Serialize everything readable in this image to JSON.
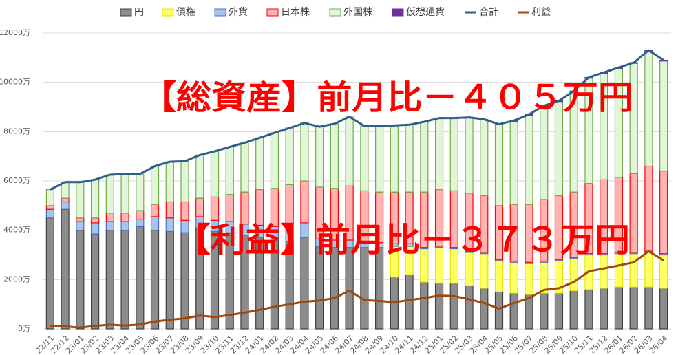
{
  "chart_data": {
    "type": "bar",
    "categories": [
      "22/11",
      "22/12",
      "23/01",
      "23/02",
      "23/03",
      "23/04",
      "23/05",
      "23/06",
      "23/07",
      "23/08",
      "23/09",
      "23/10",
      "23/11",
      "23/12",
      "24/01",
      "24/02",
      "24/03",
      "24/04",
      "24/05",
      "24/06",
      "24/07",
      "24/08",
      "24/09",
      "24/10",
      "24/11",
      "24/12",
      "25/01",
      "25/02",
      "25/03",
      "25/04",
      "25/05",
      "25/06",
      "25/07",
      "25/08",
      "25/09",
      "25/10",
      "25/11",
      "25/12",
      "26/01",
      "26/02",
      "26/03",
      "26/04"
    ],
    "series": [
      {
        "name": "円",
        "kind": "bar",
        "color": "#8c8c8c",
        "edge": "#3f3f3f",
        "values": [
          4500,
          4850,
          4000,
          3850,
          4000,
          4000,
          4150,
          4000,
          3950,
          3900,
          4100,
          3950,
          3900,
          3800,
          3700,
          3600,
          3550,
          3700,
          3350,
          3300,
          3300,
          3300,
          3300,
          2100,
          2200,
          1900,
          1850,
          1850,
          1750,
          1650,
          1500,
          1450,
          1400,
          1450,
          1450,
          1550,
          1600,
          1650,
          1700,
          1700,
          1700,
          1650
        ]
      },
      {
        "name": "債権",
        "kind": "bar",
        "color": "#ffff66",
        "edge": "#e6e600",
        "values": [
          0,
          0,
          0,
          0,
          0,
          0,
          0,
          0,
          0,
          0,
          0,
          0,
          0,
          0,
          0,
          0,
          0,
          0,
          0,
          0,
          0,
          0,
          0,
          1250,
          1150,
          1350,
          1450,
          1400,
          1350,
          1400,
          1250,
          1250,
          1250,
          1250,
          1300,
          1300,
          1400,
          1350,
          1350,
          1350,
          1400,
          1350
        ]
      },
      {
        "name": "外貨",
        "kind": "bar",
        "color": "#a9c4eb",
        "edge": "#4472c4",
        "values": [
          350,
          300,
          350,
          450,
          350,
          350,
          300,
          550,
          550,
          500,
          450,
          450,
          450,
          450,
          500,
          550,
          700,
          600,
          300,
          300,
          300,
          250,
          200,
          100,
          100,
          50,
          50,
          50,
          50,
          50,
          50,
          50,
          50,
          50,
          50,
          50,
          50,
          50,
          50,
          50,
          50,
          50
        ]
      },
      {
        "name": "日本株",
        "kind": "bar",
        "color": "#ffb3b3",
        "edge": "#ff0000",
        "values": [
          150,
          150,
          150,
          200,
          350,
          350,
          350,
          500,
          650,
          750,
          750,
          950,
          1100,
          1300,
          1450,
          1550,
          1600,
          1700,
          2100,
          2100,
          2200,
          2050,
          2050,
          2100,
          2100,
          2250,
          2300,
          2300,
          2350,
          2300,
          2200,
          2300,
          2350,
          2500,
          2600,
          2650,
          2850,
          3000,
          3050,
          3200,
          3450,
          3350
        ]
      },
      {
        "name": "外国株",
        "kind": "bar",
        "color": "#e2f5d9",
        "edge": "#70ad47",
        "values": [
          650,
          650,
          1450,
          1550,
          1550,
          1580,
          1480,
          1550,
          1630,
          1650,
          1750,
          1850,
          1930,
          2000,
          2100,
          2250,
          2300,
          2350,
          2450,
          2620,
          2800,
          2630,
          2670,
          2700,
          2730,
          2850,
          2900,
          2950,
          3080,
          3100,
          3300,
          3370,
          3620,
          3770,
          3820,
          4070,
          4270,
          4320,
          4420,
          4470,
          4670,
          4465
        ]
      },
      {
        "name": "仮想通貨",
        "kind": "bar",
        "color": "#7030a0",
        "edge": "#7030a0",
        "values": [
          0,
          0,
          0,
          0,
          0,
          0,
          0,
          0,
          0,
          0,
          0,
          0,
          0,
          0,
          0,
          0,
          0,
          0,
          0,
          0,
          0,
          0,
          0,
          0,
          0,
          0,
          0,
          0,
          0,
          0,
          0,
          30,
          30,
          30,
          30,
          30,
          30,
          30,
          30,
          30,
          30,
          30
        ]
      },
      {
        "name": "合計",
        "kind": "line",
        "color": "#2e5f8a",
        "values": [
          5650,
          5950,
          5950,
          6050,
          6250,
          6280,
          6280,
          6600,
          6780,
          6800,
          7050,
          7200,
          7380,
          7550,
          7750,
          7950,
          8150,
          8350,
          8200,
          8320,
          8600,
          8230,
          8220,
          8250,
          8280,
          8400,
          8550,
          8550,
          8580,
          8500,
          8300,
          8450,
          8700,
          9050,
          9250,
          9650,
          10200,
          10400,
          10600,
          10800,
          11300,
          10895
        ]
      },
      {
        "name": "利益",
        "kind": "line",
        "color": "#a0480a",
        "values": [
          100,
          100,
          50,
          120,
          170,
          130,
          180,
          300,
          370,
          430,
          540,
          480,
          560,
          660,
          770,
          900,
          1000,
          1100,
          1150,
          1250,
          1550,
          1170,
          1130,
          1080,
          1170,
          1250,
          1350,
          1330,
          1200,
          1050,
          820,
          1050,
          1250,
          1580,
          1650,
          1900,
          2330,
          2450,
          2570,
          2700,
          3150,
          2777
        ]
      }
    ],
    "ylim": [
      0,
      12000
    ],
    "yticks": [
      {
        "value": 0,
        "label": "0万"
      },
      {
        "value": 2000,
        "label": "2000万"
      },
      {
        "value": 4000,
        "label": "4000万"
      },
      {
        "value": 6000,
        "label": "6000万"
      },
      {
        "value": 8000,
        "label": "8000万"
      },
      {
        "value": 10000,
        "label": "10000万"
      },
      {
        "value": 12000,
        "label": "12000万"
      }
    ],
    "grid": true,
    "legend": "top",
    "annotations": [
      "【総資産】前月比－４０５万円",
      "【利益】前月比－３７３万円"
    ],
    "annotation_color": "#ff0000"
  }
}
